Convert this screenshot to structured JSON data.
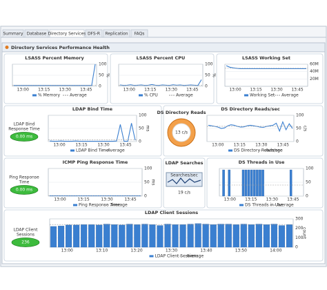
{
  "tabs": [
    "Summary",
    "Database",
    "Directory Services",
    "DFS-R",
    "Replication",
    "FAQs"
  ],
  "active_tab": 2,
  "panel_title": "Directory Services Performance Health",
  "widgets": [
    {
      "type": "line",
      "title": "LSASS Percent Memory",
      "xticks": [
        "13:00",
        "13:15",
        "13:30",
        "13:45"
      ],
      "ylim": [
        0,
        100
      ],
      "yticks": [
        0,
        50,
        100
      ],
      "ylabel": "%",
      "series": [
        {
          "name": "% Memory",
          "color": "#3a7fd0",
          "values": [
            4,
            4,
            4,
            4,
            4,
            4,
            4,
            4,
            4,
            4,
            4,
            4,
            4,
            4,
            4,
            4,
            4,
            4,
            4,
            4,
            4,
            4,
            4,
            100
          ]
        }
      ],
      "average": {
        "name": "Average",
        "value": 5
      }
    },
    {
      "type": "line",
      "title": "LSASS Percent CPU",
      "xticks": [
        "13:00",
        "13:15",
        "13:30",
        "13:45"
      ],
      "ylim": [
        0,
        100
      ],
      "yticks": [
        0,
        50,
        100
      ],
      "ylabel": "%",
      "series": [
        {
          "name": "% CPU",
          "color": "#3a7fd0",
          "values": [
            6,
            4,
            5,
            7,
            4,
            5,
            6,
            4,
            5,
            8,
            5,
            4,
            6,
            5,
            4,
            7,
            5,
            6,
            4,
            5,
            6,
            5,
            4,
            30
          ]
        }
      ],
      "average": {
        "name": "Average",
        "value": 5
      }
    },
    {
      "type": "line",
      "title": "LSASS Working Set",
      "xticks": [
        "13:00",
        "13:15",
        "13:30",
        "13:45"
      ],
      "ylim": [
        0,
        60
      ],
      "yticks": [
        {
          "value": 20,
          "label": "20M"
        },
        {
          "value": 40,
          "label": "40M"
        },
        {
          "value": 60,
          "label": "60M"
        }
      ],
      "series": [
        {
          "name": "Working Set",
          "color": "#3a7fd0",
          "values": [
            56,
            52,
            50,
            49,
            48,
            48,
            48,
            48,
            48,
            48,
            48,
            48,
            48,
            48,
            48,
            48,
            48,
            48,
            48,
            48,
            48,
            48,
            48,
            48
          ]
        }
      ],
      "average": {
        "name": "Average",
        "value": 49
      }
    },
    {
      "type": "line",
      "title": "LDAP Bind Time",
      "xticks": [
        "13:00",
        "13:15",
        "13:30",
        "13:45"
      ],
      "ylim": [
        0,
        100
      ],
      "yticks": [
        0,
        50,
        100
      ],
      "ylabel": "ms",
      "series": [
        {
          "name": "LDAP Bind Time",
          "color": "#3a7fd0",
          "values": [
            2,
            1,
            1,
            2,
            1,
            1,
            1,
            2,
            1,
            1,
            1,
            1,
            1,
            1,
            1,
            1,
            1,
            1,
            2,
            65,
            1,
            1,
            70,
            5
          ]
        }
      ],
      "average": {
        "name": "Average",
        "value": 6
      }
    },
    {
      "type": "line",
      "title": "DS Directory Reads/sec",
      "xticks": [
        "13:00",
        "13:15",
        "13:30",
        "13:45"
      ],
      "ylim": [
        0,
        100
      ],
      "yticks": [
        0,
        50,
        100
      ],
      "ylabel": "c/s",
      "series": [
        {
          "name": "DS Directory Reads/sec",
          "color": "#3a7fd0",
          "values": [
            62,
            60,
            58,
            55,
            50,
            52,
            60,
            64,
            62,
            58,
            55,
            56,
            60,
            62,
            60,
            58,
            55,
            54,
            58,
            60,
            62,
            70,
            40,
            75,
            45,
            68,
            50
          ]
        }
      ],
      "average": {
        "name": "Average",
        "value": 58
      }
    },
    {
      "type": "line",
      "title": "ICMP Ping Response Time",
      "xticks": [
        "13:00",
        "13:15",
        "13:30",
        "13:45"
      ],
      "ylim": [
        0,
        100
      ],
      "yticks": [
        0,
        50,
        100
      ],
      "ylabel": "ms",
      "series": [
        {
          "name": "Ping Response Time",
          "color": "#3a7fd0",
          "values": [
            1,
            1,
            1,
            1,
            1,
            1,
            1,
            1,
            1,
            1,
            1,
            1,
            1,
            1,
            1,
            1,
            1,
            1,
            1,
            1,
            1,
            1,
            1,
            1
          ]
        }
      ],
      "average": {
        "name": "Average",
        "value": 1
      }
    },
    {
      "type": "bar",
      "title": "DS Threads in Use",
      "xticks": [
        "13:00",
        "13:15",
        "13:30",
        "13:45"
      ],
      "ylim": [
        0,
        100
      ],
      "yticks": [
        0,
        50,
        100
      ],
      "series": [
        {
          "name": "DS Threads in Use",
          "color": "#3a7fd0",
          "values": [
            0,
            95,
            0,
            95,
            0,
            0,
            0,
            0,
            95,
            95,
            95,
            95,
            95,
            95,
            95,
            95,
            0,
            0,
            0,
            0,
            0,
            0,
            0,
            0,
            0,
            95,
            0,
            0,
            0,
            0
          ]
        }
      ],
      "average": {
        "name": "Average",
        "value": 40
      }
    },
    {
      "type": "bar",
      "title": "LDAP Client Sessions",
      "xticks": [
        "13:00",
        "13:10",
        "13:20",
        "13:30",
        "13:40",
        "13:50",
        "14:00"
      ],
      "ylim": [
        0,
        300
      ],
      "yticks": [
        0,
        100,
        200,
        300
      ],
      "ylabel": "count",
      "series": [
        {
          "name": "LDAP Client Sessions",
          "color": "#3a7fd0",
          "values": [
            220,
            225,
            235,
            235,
            240,
            240,
            235,
            245,
            240,
            235,
            245,
            240,
            245,
            240,
            230,
            245,
            240,
            240,
            245,
            250,
            245,
            240,
            245,
            245,
            240,
            245,
            240,
            245,
            240,
            245,
            230,
            240
          ]
        }
      ],
      "average": {
        "name": "Average",
        "value": 240
      }
    }
  ],
  "status_boxes": [
    {
      "label_lines": [
        "LDAP Bind",
        "Response Time"
      ],
      "value_label": "0.00 ms"
    },
    {
      "label_lines": [
        "Ping Response",
        "Time"
      ],
      "value_label": "0.00 ms"
    },
    {
      "label_lines": [
        "LDAP Client",
        "Sessions"
      ],
      "value_label": "236"
    }
  ],
  "gauges": [
    {
      "title": "DS Directory Reads",
      "value_label": "13 c/s"
    },
    {
      "title": "LDAP Searches",
      "caption": "Searches/sec",
      "value_label": "19 c/s"
    }
  ]
}
